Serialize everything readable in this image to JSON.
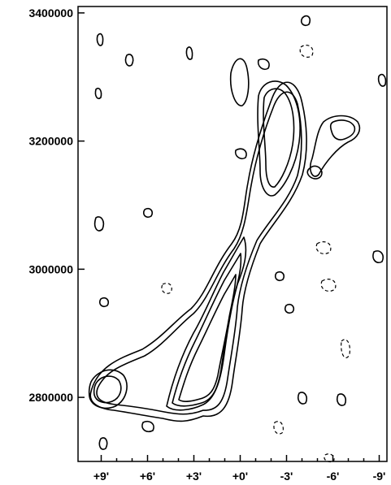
{
  "chart_data": {
    "type": "contour",
    "title": "",
    "xlabel": "",
    "ylabel": "",
    "x_ticks": [
      "+9'",
      "+6'",
      "+3'",
      "+0'",
      "-3'",
      "-6'",
      "-9'"
    ],
    "y_ticks": [
      "3400000",
      "3200000",
      "3000000",
      "2800000"
    ],
    "xlim": [
      10.5,
      -9.5
    ],
    "ylim": [
      2700000,
      3410000
    ],
    "grid": false,
    "legend": "none",
    "line_color": "#000000",
    "dashed_contours_present": true
  }
}
